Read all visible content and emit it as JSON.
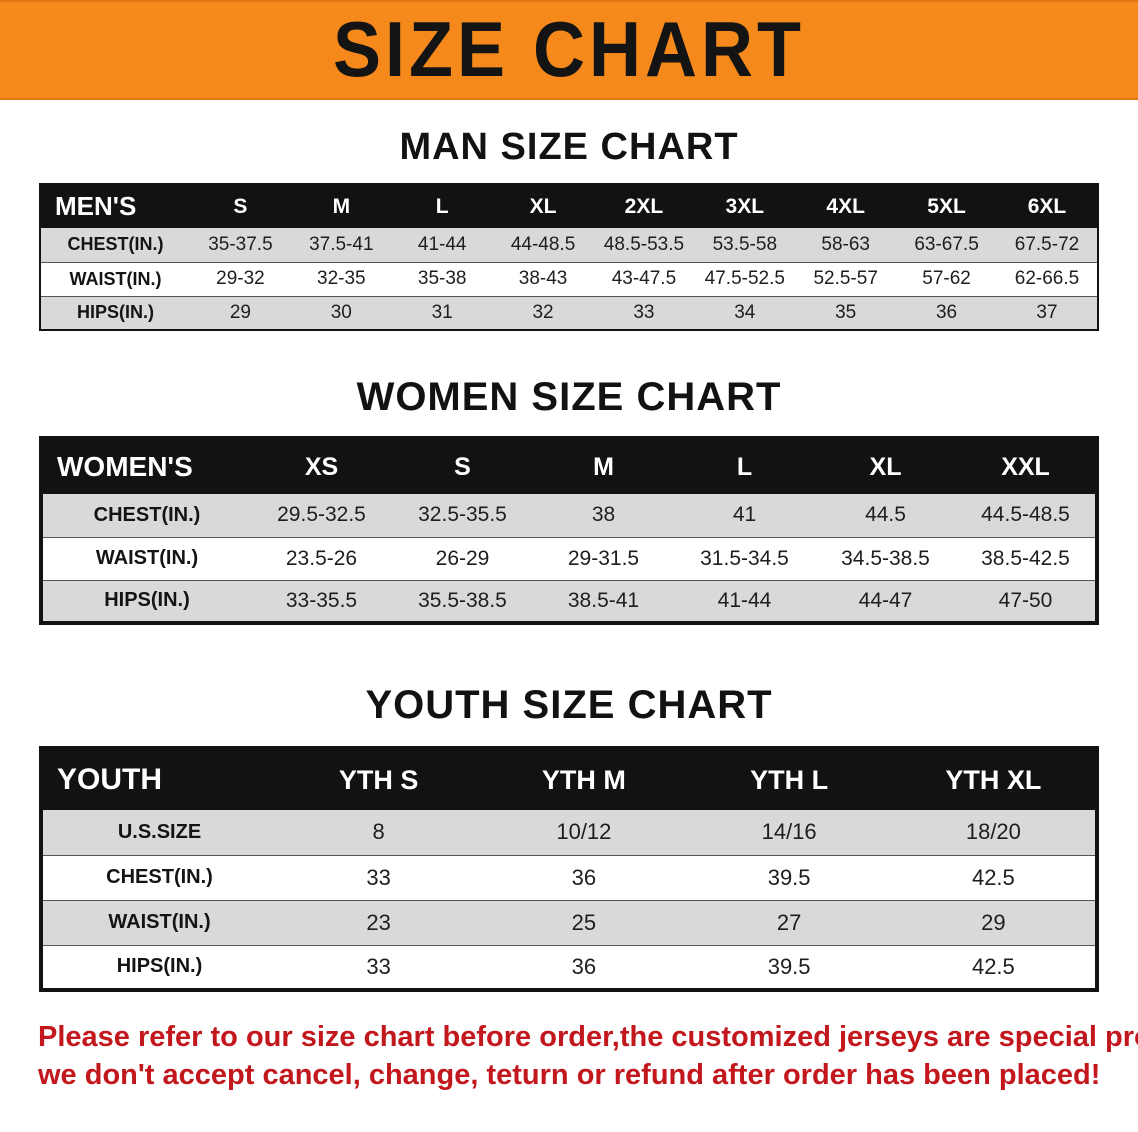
{
  "banner": {
    "title": "SIZE CHART",
    "bg_color": "#f6891c",
    "text_color": "#141414"
  },
  "sections": [
    {
      "heading": "MAN SIZE CHART",
      "table": {
        "header": [
          "MEN'S",
          "S",
          "M",
          "L",
          "XL",
          "2XL",
          "3XL",
          "4XL",
          "5XL",
          "6XL"
        ],
        "rows": [
          [
            "CHEST(IN.)",
            "35-37.5",
            "37.5-41",
            "41-44",
            "44-48.5",
            "48.5-53.5",
            "53.5-58",
            "58-63",
            "63-67.5",
            "67.5-72"
          ],
          [
            "WAIST(IN.)",
            "29-32",
            "32-35",
            "35-38",
            "38-43",
            "43-47.5",
            "47.5-52.5",
            "52.5-57",
            "57-62",
            "62-66.5"
          ],
          [
            "HIPS(IN.)",
            "29",
            "30",
            "31",
            "32",
            "33",
            "34",
            "35",
            "36",
            "37"
          ]
        ]
      }
    },
    {
      "heading": "WOMEN SIZE CHART",
      "table": {
        "header": [
          "WOMEN'S",
          "XS",
          "S",
          "M",
          "L",
          "XL",
          "XXL"
        ],
        "rows": [
          [
            "CHEST(IN.)",
            "29.5-32.5",
            "32.5-35.5",
            "38",
            "41",
            "44.5",
            "44.5-48.5"
          ],
          [
            "WAIST(IN.)",
            "23.5-26",
            "26-29",
            "29-31.5",
            "31.5-34.5",
            "34.5-38.5",
            "38.5-42.5"
          ],
          [
            "HIPS(IN.)",
            "33-35.5",
            "35.5-38.5",
            "38.5-41",
            "41-44",
            "44-47",
            "47-50"
          ]
        ]
      }
    },
    {
      "heading": "YOUTH SIZE CHART",
      "table": {
        "header": [
          "YOUTH",
          "YTH S",
          "YTH M",
          "YTH L",
          "YTH XL"
        ],
        "rows": [
          [
            "U.S.SIZE",
            "8",
            "10/12",
            "14/16",
            "18/20"
          ],
          [
            "CHEST(IN.)",
            "33",
            "36",
            "39.5",
            "42.5"
          ],
          [
            "WAIST(IN.)",
            "23",
            "25",
            "27",
            "29"
          ],
          [
            "HIPS(IN.)",
            "33",
            "36",
            "39.5",
            "42.5"
          ]
        ]
      }
    }
  ],
  "disclaimer": {
    "line1": "Please refer to our size chart before order,the customized jerseys are special products,",
    "line2": "we don't accept cancel, change, teturn or refund after order has been placed!",
    "color": "#c2171c"
  }
}
